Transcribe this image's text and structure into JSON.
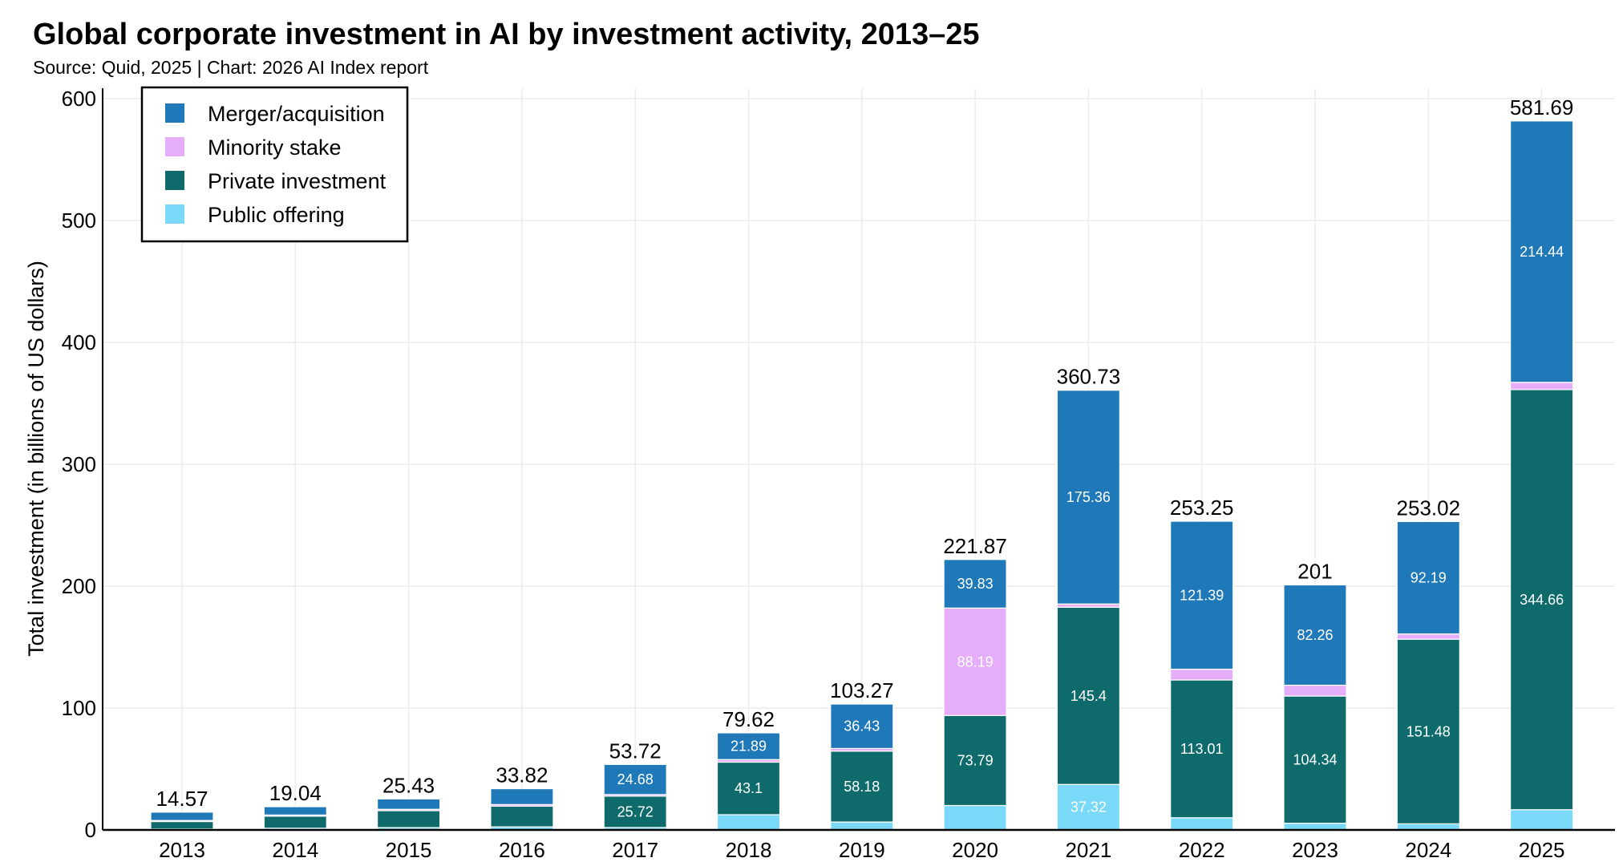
{
  "chart_data": {
    "type": "bar",
    "stacked": true,
    "title": "Global corporate investment in AI by investment activity, 2013–25",
    "subtitle": "Source: Quid, 2025 | Chart: 2026 AI Index report",
    "xlabel": "",
    "ylabel": "Total investment (in billions of US dollars)",
    "ylim": [
      0,
      600
    ],
    "yticks": [
      0,
      100,
      200,
      300,
      400,
      500,
      600
    ],
    "grid": true,
    "legend_position": "top-left",
    "categories": [
      "2013",
      "2014",
      "2015",
      "2016",
      "2017",
      "2018",
      "2019",
      "2020",
      "2021",
      "2022",
      "2023",
      "2024",
      "2025"
    ],
    "totals": [
      14.57,
      19.04,
      25.43,
      33.82,
      53.72,
      79.62,
      103.27,
      221.87,
      360.73,
      253.25,
      201,
      253.02,
      581.69
    ],
    "series": [
      {
        "name": "Public offering",
        "color": "#7ad8f8",
        "values": [
          0.8,
          1.4,
          1.9,
          2.5,
          2.0,
          12.5,
          6.5,
          20.06,
          37.32,
          10.0,
          5.5,
          5.0,
          16.59
        ],
        "labels": [
          null,
          null,
          null,
          null,
          null,
          null,
          null,
          null,
          "37.32",
          null,
          null,
          null,
          null
        ]
      },
      {
        "name": "Private investment",
        "color": "#0f6b6b",
        "values": [
          6.1,
          9.9,
          13.9,
          17.0,
          25.72,
          43.1,
          58.18,
          73.79,
          145.4,
          113.01,
          104.34,
          151.48,
          344.66
        ],
        "labels": [
          null,
          null,
          null,
          null,
          "25.72",
          "43.1",
          "58.18",
          "73.79",
          "145.4",
          "113.01",
          "104.34",
          "151.48",
          "344.66"
        ]
      },
      {
        "name": "Minority stake",
        "color": "#e6adfa",
        "values": [
          0.87,
          0.94,
          1.13,
          1.32,
          1.32,
          2.13,
          2.16,
          88.19,
          2.65,
          8.85,
          8.9,
          4.35,
          6.0
        ],
        "labels": [
          null,
          null,
          null,
          null,
          null,
          null,
          null,
          "88.19",
          null,
          null,
          null,
          null,
          null
        ]
      },
      {
        "name": "Merger/acquisition",
        "color": "#1f78b8",
        "values": [
          6.8,
          6.8,
          8.5,
          13.0,
          24.68,
          21.89,
          36.43,
          39.83,
          175.36,
          121.39,
          82.26,
          92.19,
          214.44
        ],
        "labels": [
          null,
          null,
          null,
          null,
          "24.68",
          "21.89",
          "36.43",
          "39.83",
          "175.36",
          "121.39",
          "82.26",
          "92.19",
          "214.44"
        ]
      }
    ],
    "legend_order": [
      "Merger/acquisition",
      "Minority stake",
      "Private investment",
      "Public offering"
    ]
  },
  "colors": {
    "grid": "#ececec",
    "axis": "#000000",
    "segment_gap": "#ffffff"
  }
}
